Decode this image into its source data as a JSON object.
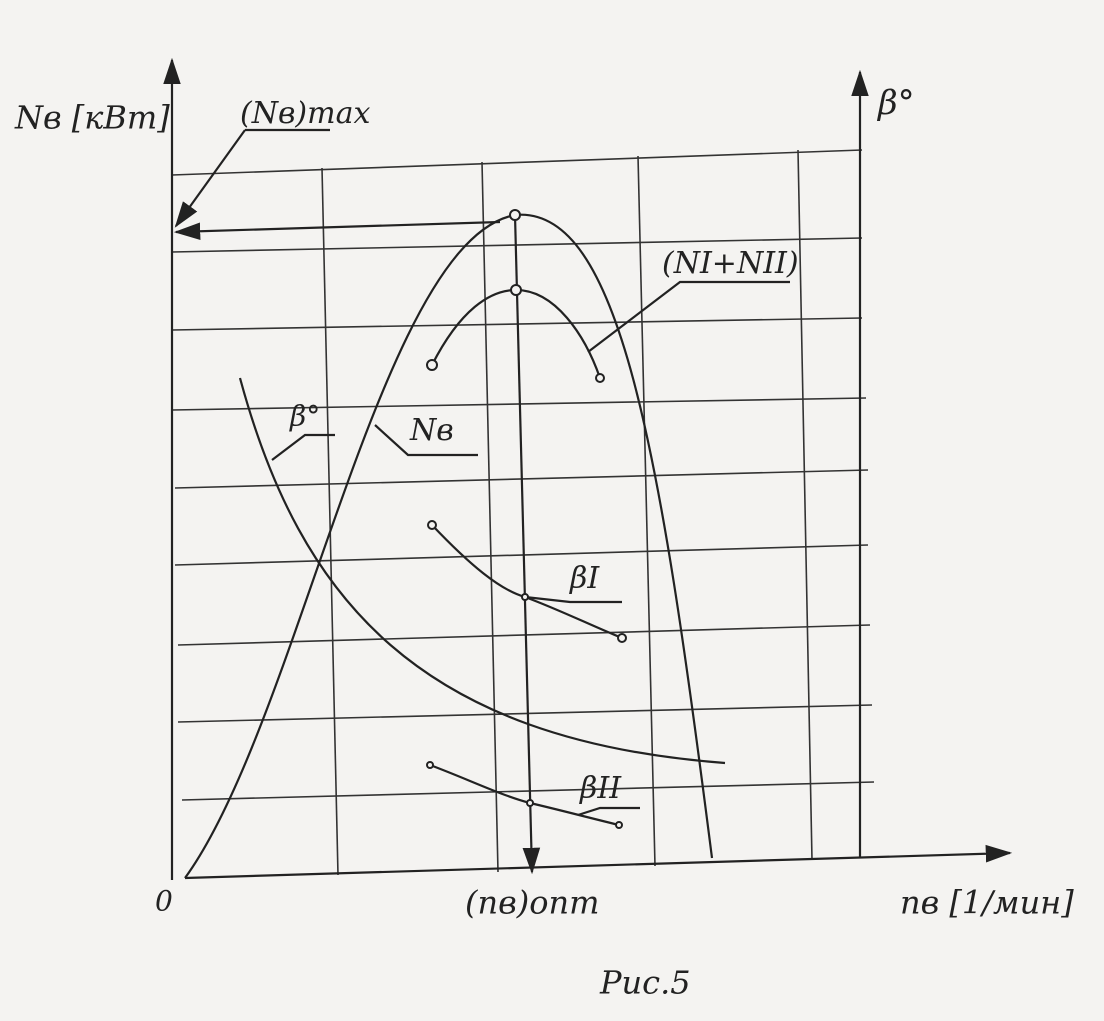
{
  "axes": {
    "y_label": "Nв [кВт]",
    "y2_label": "β°",
    "x_label": "nв [1/мин]",
    "origin": "0"
  },
  "labels": {
    "n_max": "(Nв)max",
    "n_sum": "(NI+NII)",
    "n_b": "Nв",
    "beta": "β°",
    "beta_1": "βI",
    "beta_2": "βII",
    "n_opt": "(nв)опт"
  },
  "caption": "Рис.5"
}
